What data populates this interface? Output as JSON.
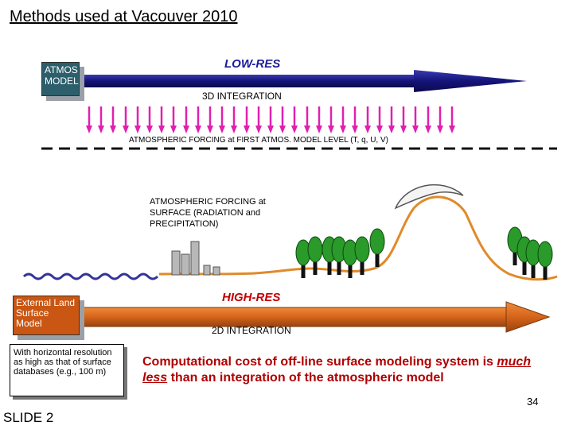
{
  "title": "Methods used at Vacouver 2010",
  "atmos_model_label": "ATMOS MODEL",
  "low_res_label": "LOW-RES",
  "integration_3d_label": "3D INTEGRATION",
  "forcing_first_level_label": "ATMOSPHERIC FORCING at FIRST ATMOS. MODEL LEVEL (T, q, U, V)",
  "forcing_surface_label": "ATMOSPHERIC FORCING at SURFACE (RADIATION and PRECIPITATION)",
  "land_surface_model_label": "External Land Surface Model",
  "high_res_label": "HIGH-RES",
  "integration_2d_label": "2D INTEGRATION",
  "resolution_note": "With horizontal resolution as high as that of surface databases (e.g., 100 m)",
  "cost_statement": {
    "before": "Computational cost of off-line surface modeling system is ",
    "emphasis": "much less",
    "after": " than an integration of the atmospheric model"
  },
  "page_number": "34",
  "slide_label": "SLIDE 2",
  "colors": {
    "low_res_arrow": "#14147a",
    "high_res_arrow": "#d4641a",
    "forcing_arrows": "#e020b0",
    "terrain": "#e08a2a",
    "trees": "#2a9a2a",
    "tree_trunks": "#111111",
    "water": "#333399",
    "buildings": "#b8b8b8"
  },
  "icons": {
    "trees": "tree-icon",
    "buildings": "building-icon",
    "snow": "snow-cap-icon",
    "water": "water-wave-icon"
  }
}
